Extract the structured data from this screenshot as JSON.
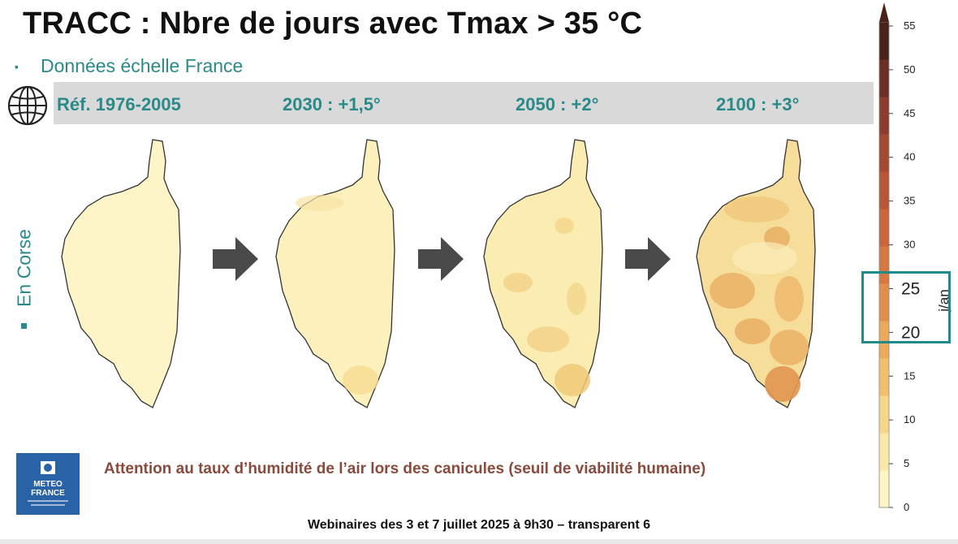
{
  "header": {
    "title": "TRACC : Nbre de jours avec Tmax > 35 °C",
    "bullet": "▪",
    "subtitle": "Données échelle France"
  },
  "periods": [
    {
      "label": "Réf. 1976-2005",
      "mean_days": 2
    },
    {
      "label": "2030 : +1,5°",
      "mean_days": 3
    },
    {
      "label": "2050 : +2°",
      "mean_days": 6
    },
    {
      "label": "2100 : +3°",
      "mean_days": 12
    }
  ],
  "side": {
    "label": "En Corse",
    "bullet": "▪"
  },
  "icons": {
    "globe": "globe-icon",
    "arrow": "arrow-right-icon",
    "logo": "meteo-france-logo"
  },
  "logo": {
    "line1": "METEO",
    "line2": "FRANCE"
  },
  "warning": "Attention au taux d’humidité de l’air lors des canicules (seuil de viabilité humaine)",
  "footer": "Webinaires des 3 et 7 juillet 2025 à 9h30  – transparent 6",
  "colorbar": {
    "unit": "j/an",
    "ticks": [
      "0",
      "5",
      "10",
      "15",
      "20",
      "25",
      "30",
      "35",
      "40",
      "45",
      "50",
      "55"
    ],
    "highlight_ticks": [
      "25",
      "20"
    ],
    "colors": [
      "#fdf5c5",
      "#fbe8a6",
      "#f7d68a",
      "#f2c06d",
      "#ebaa5a",
      "#e08f4b",
      "#d57841",
      "#c9663b",
      "#b85636",
      "#a44a33",
      "#8d3d2e",
      "#6b2f25",
      "#4a2218"
    ]
  }
}
